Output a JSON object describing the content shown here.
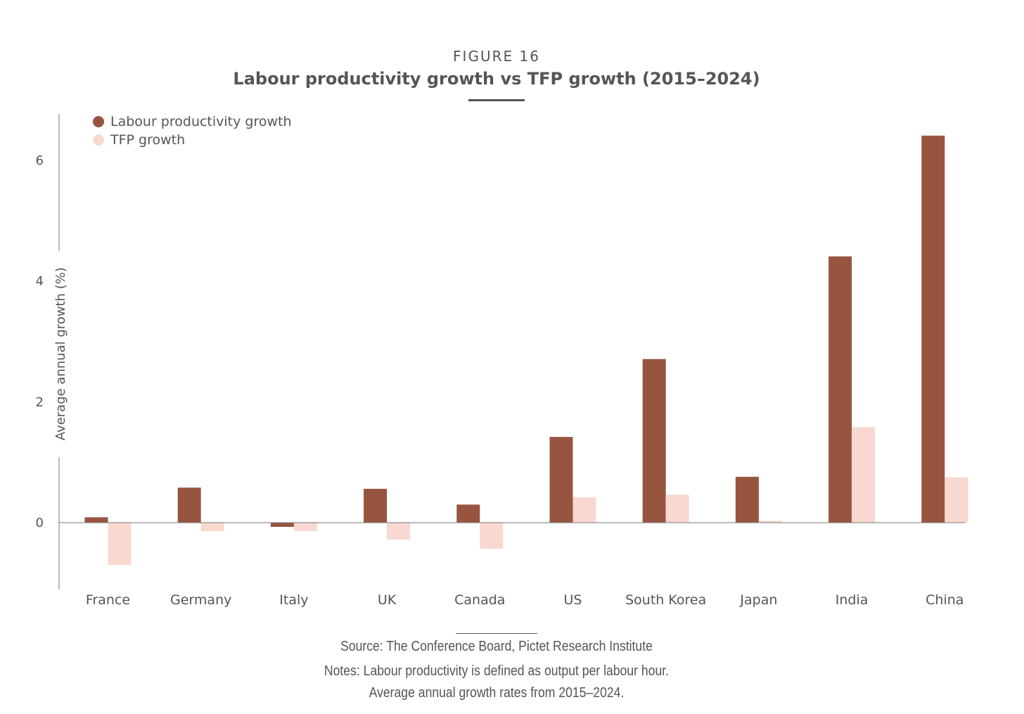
{
  "figure": {
    "label": "FIGURE 16",
    "title": "Labour productivity growth vs TFP growth (2015–2024)"
  },
  "footer": {
    "source": "Source: The Conference Board, Pictet Research Institute",
    "notes_line1": "Notes: Labour productivity is defined as output per labour hour.",
    "notes_line2": "Average annual growth rates from 2015–2024."
  },
  "colors": {
    "labour": "#975540",
    "tfp": "#f8d8d0",
    "axis": "#777777",
    "text": "#555555"
  },
  "chart_data": {
    "type": "bar",
    "title": "Labour productivity growth vs TFP growth (2015–2024)",
    "xlabel": "",
    "ylabel": "Average annual growth (%)",
    "ylim": [
      -1.13,
      6.75
    ],
    "yticks": [
      0,
      2,
      4,
      6
    ],
    "grid": false,
    "legend_position": "top-left",
    "categories": [
      "France",
      "Germany",
      "Italy",
      "UK",
      "Canada",
      "US",
      "South Korea",
      "Japan",
      "India",
      "China"
    ],
    "series": [
      {
        "name": "Labour productivity growth",
        "color": "#975540",
        "values": [
          0.09,
          0.58,
          -0.07,
          0.56,
          0.3,
          1.42,
          2.71,
          0.76,
          4.41,
          6.41
        ]
      },
      {
        "name": "TFP growth",
        "color": "#f8d8d0",
        "values": [
          -0.7,
          -0.14,
          -0.14,
          -0.28,
          -0.43,
          0.42,
          0.46,
          0.03,
          1.58,
          0.75
        ]
      }
    ]
  }
}
